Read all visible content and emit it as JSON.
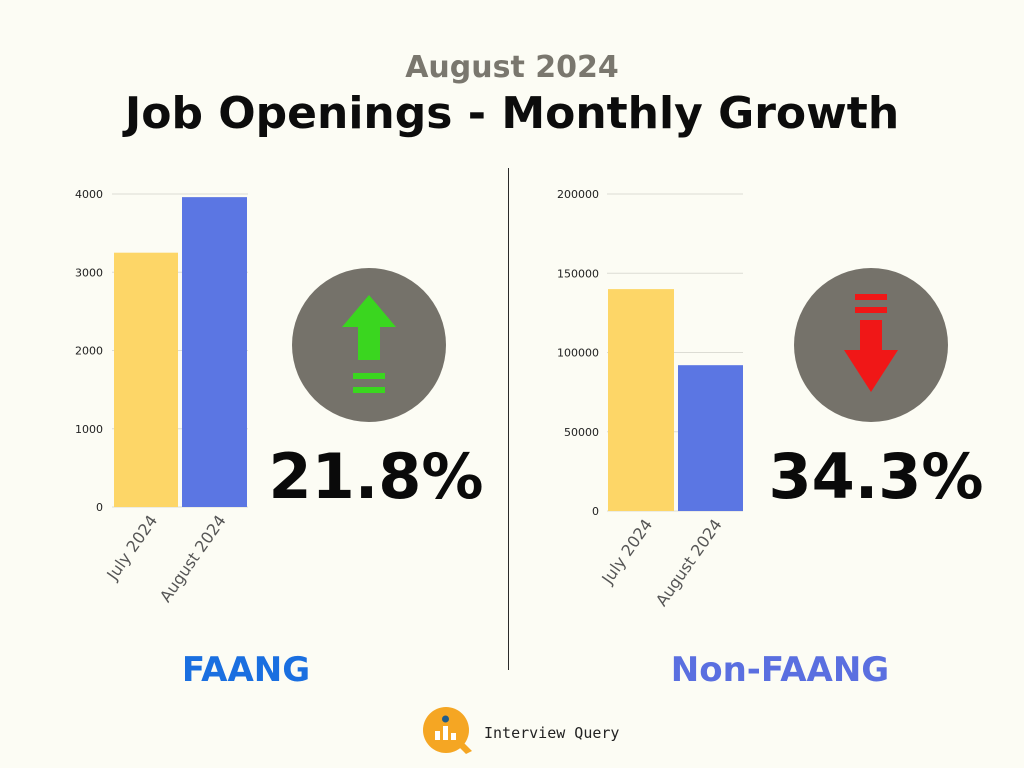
{
  "header": {
    "subtitle": "August 2024",
    "title": "Job Openings - Monthly Growth"
  },
  "panels": [
    {
      "label": "FAANG",
      "percent_change": "21.8%",
      "direction": "up",
      "label_color": "#1a6fe0",
      "arrow_color": "#3ad61f"
    },
    {
      "label": "Non-FAANG",
      "percent_change": "34.3%",
      "direction": "down",
      "label_color": "#5a6fe0",
      "arrow_color": "#f01717"
    }
  ],
  "brand": {
    "name": "Interview Query",
    "logo_color": "#f5a623",
    "logo_dot_color": "#1f5c8c"
  },
  "chart_data": [
    {
      "type": "bar",
      "title": "",
      "categories": [
        "July 2024",
        "August 2024"
      ],
      "values": [
        3250,
        3960
      ],
      "bar_colors": [
        "#fdd667",
        "#5b76e3"
      ],
      "ylim": [
        0,
        4000
      ],
      "yticks": [
        0,
        1000,
        2000,
        3000,
        4000
      ],
      "grid": true
    },
    {
      "type": "bar",
      "title": "",
      "categories": [
        "July 2024",
        "August 2024"
      ],
      "values": [
        140000,
        92000
      ],
      "bar_colors": [
        "#fdd667",
        "#5b76e3"
      ],
      "ylim": [
        0,
        200000
      ],
      "yticks": [
        0,
        50000,
        100000,
        150000,
        200000
      ],
      "grid": true
    }
  ]
}
